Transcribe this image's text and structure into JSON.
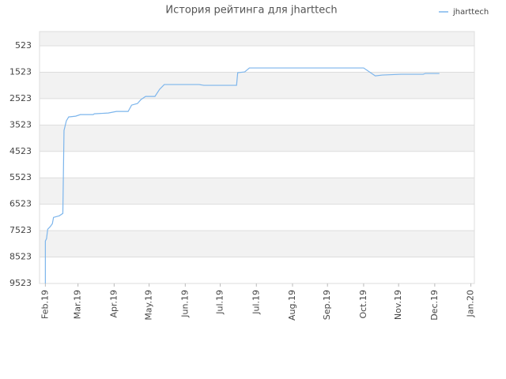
{
  "chart_data": {
    "type": "line",
    "title": "История рейтинга для jharttech",
    "series": [
      {
        "name": "jharttech",
        "color": "#7cb5ec",
        "x": [
          0,
          0,
          1,
          2,
          4,
          6,
          7,
          12,
          15,
          16,
          18,
          20,
          26,
          30,
          41,
          42,
          54,
          61,
          71,
          74,
          79,
          82,
          86,
          94,
          98,
          102,
          132,
          136,
          164,
          165,
          171,
          175,
          236,
          273,
          283,
          289,
          305,
          324,
          326,
          338
        ],
        "values": [
          9523,
          7917,
          7828,
          7470,
          7380,
          7260,
          7020,
          6960,
          6870,
          3727,
          3367,
          3217,
          3187,
          3128,
          3128,
          3098,
          3068,
          3008,
          3008,
          2768,
          2708,
          2559,
          2439,
          2439,
          2170,
          1990,
          1990,
          2020,
          2020,
          1541,
          1511,
          1361,
          1361,
          1361,
          1661,
          1631,
          1601,
          1601,
          1571,
          1571
        ]
      }
    ],
    "ylim": [
      9523,
      -16
    ],
    "yticks": [
      523,
      1523,
      2523,
      3523,
      4523,
      5523,
      6523,
      7523,
      8523,
      9523
    ],
    "xlim": [
      -5,
      368
    ],
    "xticks": [
      {
        "value": 0,
        "label": "Feb.19"
      },
      {
        "value": 28,
        "label": "Mar.19"
      },
      {
        "value": 59,
        "label": "Apr.19"
      },
      {
        "value": 89,
        "label": "May.19"
      },
      {
        "value": 120,
        "label": "Jun.19"
      },
      {
        "value": 150,
        "label": "Jul.19"
      },
      {
        "value": 181,
        "label": "Jul.19"
      },
      {
        "value": 212,
        "label": "Aug.19"
      },
      {
        "value": 242,
        "label": "Sep.19"
      },
      {
        "value": 273,
        "label": "Oct.19"
      },
      {
        "value": 303,
        "label": "Nov.19"
      },
      {
        "value": 334,
        "label": "Dec.19"
      },
      {
        "value": 365,
        "label": "Jan.20"
      }
    ],
    "grid": true,
    "legend": "top-right"
  }
}
